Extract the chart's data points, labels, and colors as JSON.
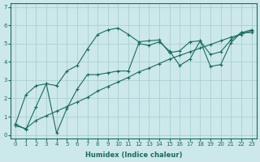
{
  "xlabel": "Humidex (Indice chaleur)",
  "ylabel": "",
  "bg_color": "#cce8ea",
  "grid_color": "#aacfd2",
  "line_color": "#1a6b5a",
  "xlim": [
    -0.5,
    23.5
  ],
  "ylim": [
    -0.2,
    7.2
  ],
  "xticks": [
    0,
    1,
    2,
    3,
    4,
    5,
    6,
    7,
    8,
    9,
    10,
    11,
    12,
    13,
    14,
    15,
    16,
    17,
    18,
    19,
    20,
    21,
    22,
    23
  ],
  "yticks": [
    0,
    1,
    2,
    3,
    4,
    5,
    6,
    7
  ],
  "series1_x": [
    0,
    1,
    2,
    3,
    4,
    5,
    6,
    7,
    8,
    9,
    10,
    11,
    12,
    13,
    14,
    15,
    16,
    17,
    18,
    19,
    20,
    21,
    22,
    23
  ],
  "series1_y": [
    0.6,
    2.2,
    2.7,
    2.8,
    2.7,
    3.5,
    3.8,
    4.7,
    5.5,
    5.75,
    5.85,
    5.5,
    5.1,
    5.15,
    5.2,
    4.5,
    4.6,
    5.1,
    5.15,
    4.4,
    4.55,
    5.2,
    5.6,
    5.75
  ],
  "series2_x": [
    0,
    1,
    2,
    3,
    4,
    5,
    6,
    7,
    8,
    9,
    10,
    11,
    12,
    13,
    14,
    15,
    16,
    17,
    18,
    19,
    20,
    21,
    22,
    23
  ],
  "series2_y": [
    0.5,
    0.35,
    0.8,
    1.05,
    1.3,
    1.55,
    1.8,
    2.05,
    2.4,
    2.65,
    2.9,
    3.15,
    3.45,
    3.65,
    3.9,
    4.15,
    4.35,
    4.55,
    4.75,
    4.95,
    5.15,
    5.35,
    5.5,
    5.7
  ],
  "series3_x": [
    0,
    1,
    2,
    3,
    4,
    5,
    6,
    7,
    8,
    9,
    10,
    11,
    12,
    13,
    14,
    15,
    16,
    17,
    18,
    19,
    20,
    21,
    22,
    23
  ],
  "series3_y": [
    0.6,
    0.3,
    1.55,
    2.8,
    0.1,
    1.45,
    2.5,
    3.3,
    3.3,
    3.4,
    3.5,
    3.5,
    5.0,
    4.9,
    5.1,
    4.6,
    3.8,
    4.15,
    5.15,
    3.75,
    3.85,
    5.05,
    5.6,
    5.6
  ]
}
